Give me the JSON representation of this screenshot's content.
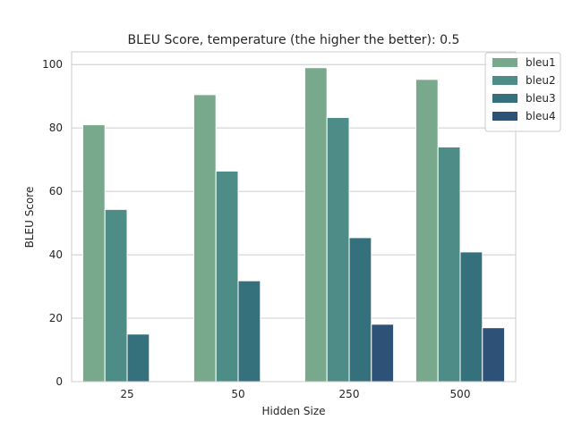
{
  "chart_data": {
    "type": "bar",
    "title": "BLEU Score, temperature (the higher the better): 0.5",
    "xlabel": "Hidden Size",
    "ylabel": "BLEU Score",
    "categories": [
      "25",
      "50",
      "250",
      "500"
    ],
    "ylim": [
      0,
      104
    ],
    "yticks": [
      0,
      20,
      40,
      60,
      80,
      100
    ],
    "grid": true,
    "legend_position": "top-right",
    "series": [
      {
        "name": "bleu1",
        "color": "#78a98c",
        "values": [
          81.0,
          90.5,
          99.0,
          95.3
        ]
      },
      {
        "name": "bleu2",
        "color": "#4e8d87",
        "values": [
          54.3,
          66.4,
          83.3,
          74.0
        ]
      },
      {
        "name": "bleu3",
        "color": "#34717d",
        "values": [
          15.0,
          31.8,
          45.4,
          40.9
        ]
      },
      {
        "name": "bleu4",
        "color": "#2d5177",
        "values": [
          0,
          0,
          18.1,
          17.0
        ]
      }
    ]
  }
}
